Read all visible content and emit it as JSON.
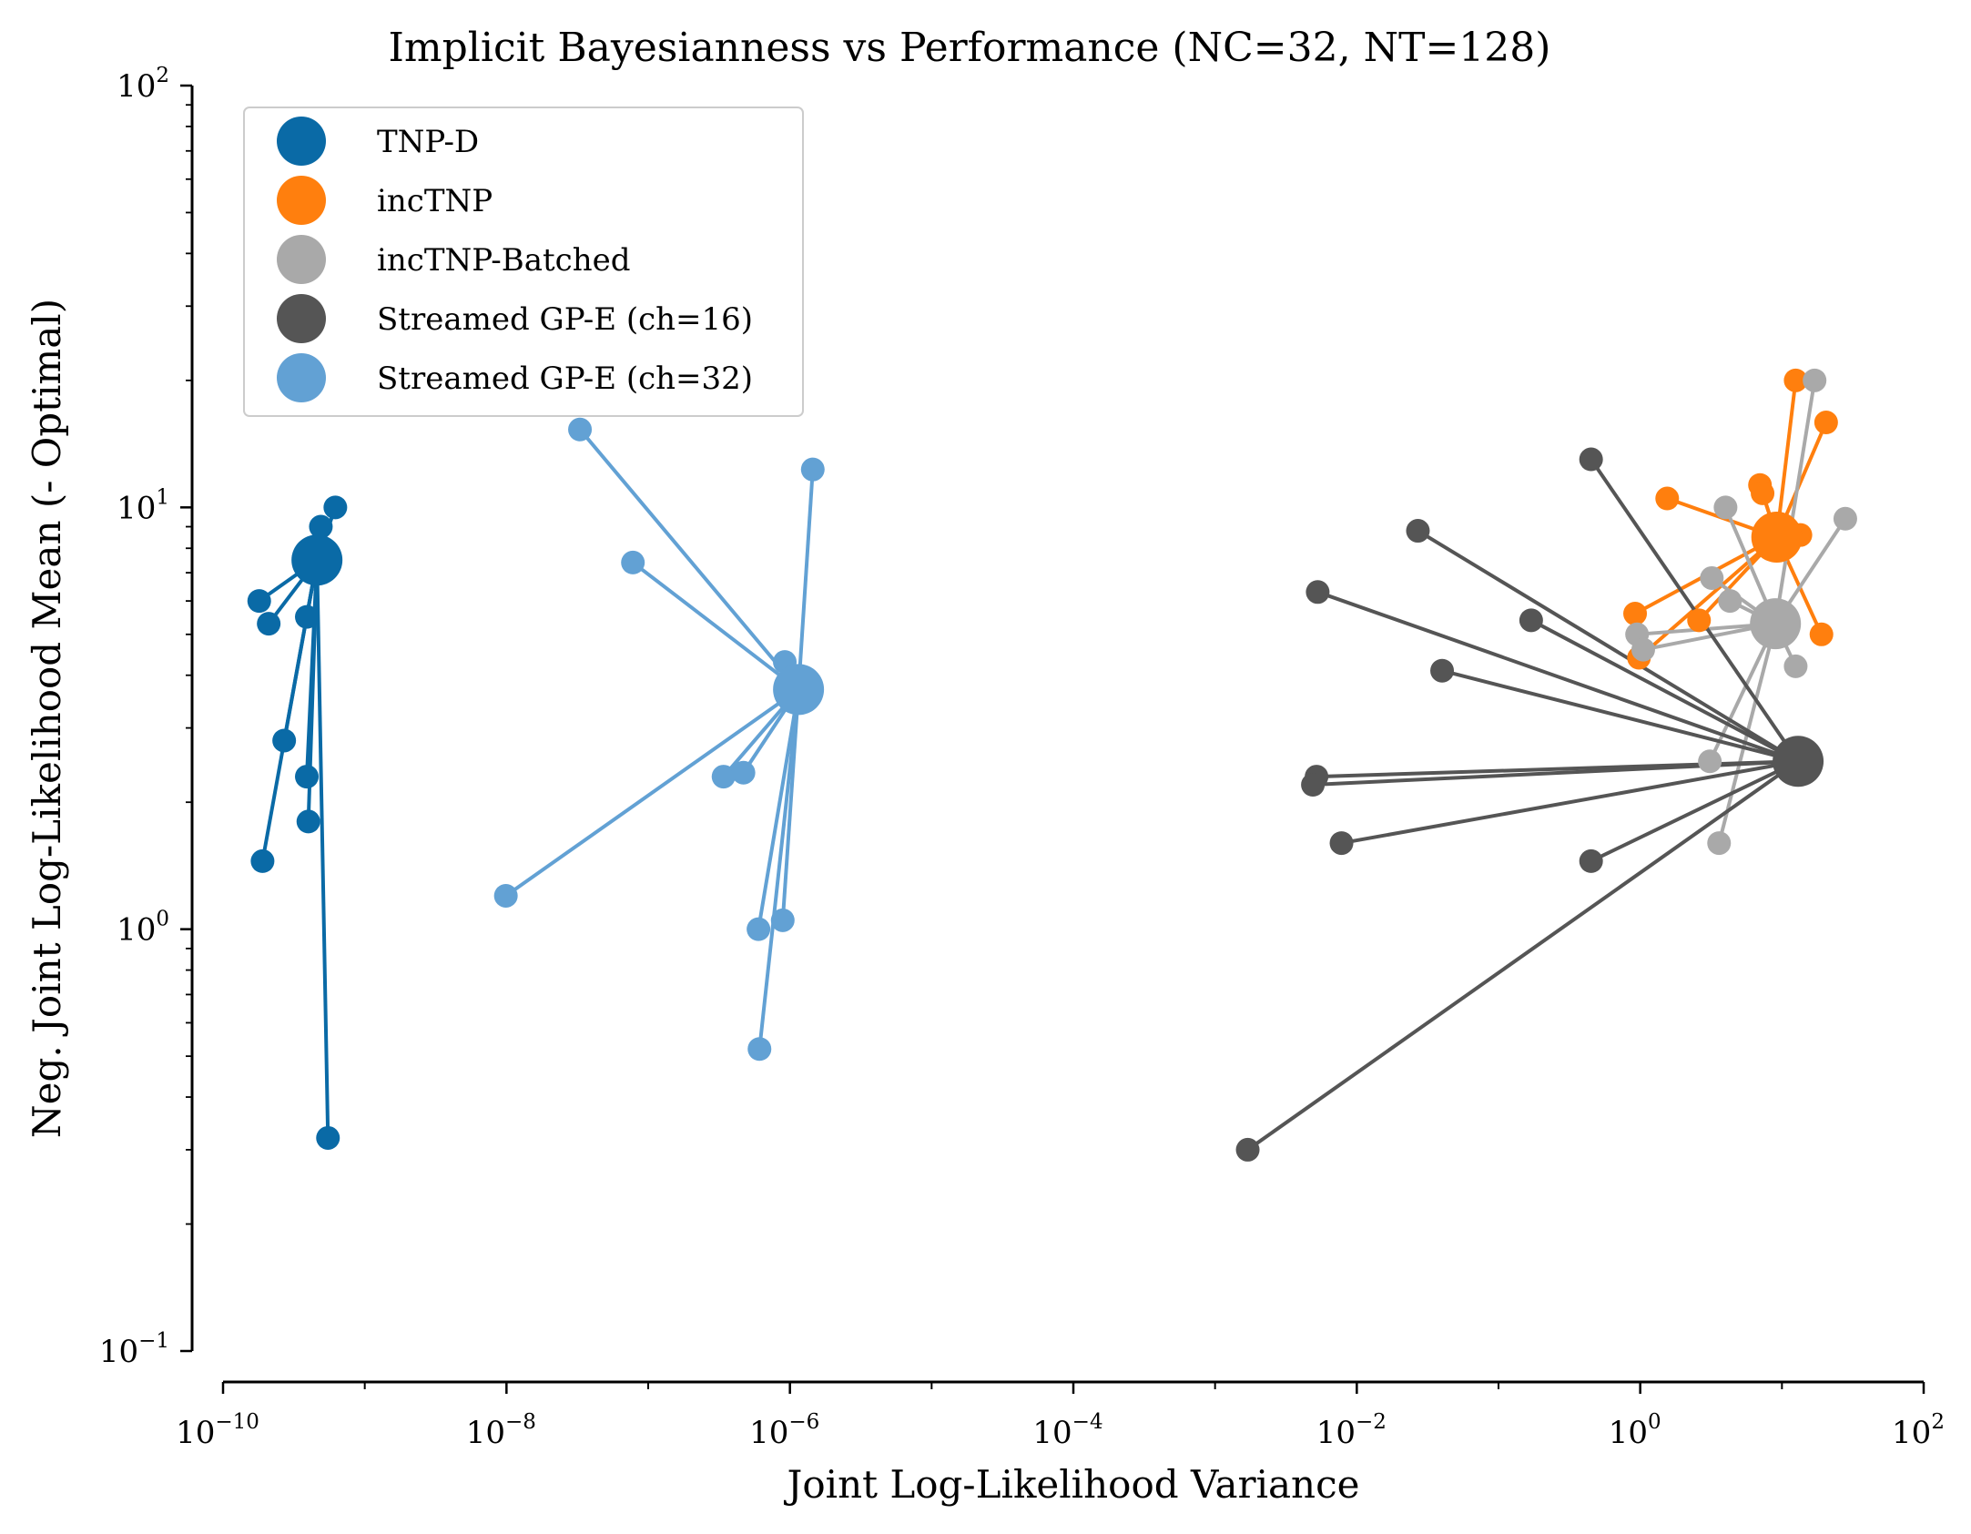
{
  "chart_data": {
    "type": "scatter",
    "title": "Implicit Bayesianness vs Performance (NC=32, NT=128)",
    "xlabel": "Joint Log-Likelihood Variance",
    "ylabel": "Neg. Joint Log-Likelihood Mean (- Optimal)",
    "xscale": "log",
    "yscale": "log",
    "xlim": [
      1e-10,
      100
    ],
    "ylim": [
      0.1,
      100
    ],
    "x_ticks": [
      {
        "base": "10",
        "exp": "−10"
      },
      {
        "base": "10",
        "exp": "−8"
      },
      {
        "base": "10",
        "exp": "−6"
      },
      {
        "base": "10",
        "exp": "−4"
      },
      {
        "base": "10",
        "exp": "−2"
      },
      {
        "base": "10",
        "exp": "0"
      },
      {
        "base": "10",
        "exp": "2"
      }
    ],
    "y_ticks": [
      {
        "base": "10",
        "exp": "−1"
      },
      {
        "base": "10",
        "exp": "0"
      },
      {
        "base": "10",
        "exp": "1"
      },
      {
        "base": "10",
        "exp": "2"
      }
    ],
    "grid": false,
    "legend_position": "top-left",
    "series": [
      {
        "name": "TNP-D",
        "color": "#0a6aa6",
        "center": [
          4.6e-10,
          7.5
        ],
        "points": [
          [
            1.8e-10,
            6.0
          ],
          [
            2.1e-10,
            5.3
          ],
          [
            3.9e-10,
            5.5
          ],
          [
            4.9e-10,
            9.0
          ],
          [
            6.2e-10,
            10.0
          ],
          [
            2.7e-10,
            2.8
          ],
          [
            3.9e-10,
            2.3
          ],
          [
            4e-10,
            1.8
          ],
          [
            1.9e-10,
            1.45
          ],
          [
            5.5e-10,
            0.32
          ]
        ]
      },
      {
        "name": "incTNP",
        "color": "#ff7f0e",
        "center": [
          9.2,
          8.5
        ],
        "points": [
          [
            1.55,
            10.5
          ],
          [
            7.0,
            11.3
          ],
          [
            7.3,
            10.8
          ],
          [
            12.5,
            20.0
          ],
          [
            20.5,
            15.9
          ],
          [
            13.5,
            8.6
          ],
          [
            19.0,
            5.0
          ],
          [
            0.92,
            5.6
          ],
          [
            0.98,
            4.4
          ],
          [
            2.6,
            5.4
          ]
        ]
      },
      {
        "name": "incTNP-Batched",
        "color": "#a9a9a9",
        "center": [
          9.0,
          5.3
        ],
        "points": [
          [
            17.0,
            20.0
          ],
          [
            28.0,
            9.4
          ],
          [
            4.0,
            10.0
          ],
          [
            3.2,
            6.8
          ],
          [
            4.3,
            6.0
          ],
          [
            12.5,
            4.2
          ],
          [
            0.95,
            5.0
          ],
          [
            1.05,
            4.6
          ],
          [
            3.1,
            2.5
          ],
          [
            3.6,
            1.6
          ]
        ]
      },
      {
        "name": "Streamed GP-E (ch=16)",
        "color": "#555555",
        "center": [
          13.0,
          2.5
        ],
        "points": [
          [
            0.45,
            13.0
          ],
          [
            0.027,
            8.8
          ],
          [
            0.0053,
            6.3
          ],
          [
            0.17,
            5.4
          ],
          [
            0.04,
            4.1
          ],
          [
            0.0052,
            2.3
          ],
          [
            0.0049,
            2.2
          ],
          [
            0.0078,
            1.6
          ],
          [
            0.45,
            1.45
          ],
          [
            0.0017,
            0.3
          ]
        ]
      },
      {
        "name": "Streamed GP-E (ch=32)",
        "color": "#62a1d4",
        "center": [
          1.15e-06,
          3.7
        ],
        "points": [
          [
            3.3e-08,
            15.3
          ],
          [
            7.8e-08,
            7.4
          ],
          [
            1.45e-06,
            12.3
          ],
          [
            9.2e-07,
            4.3
          ],
          [
            3.4e-07,
            2.3
          ],
          [
            4.7e-07,
            2.35
          ],
          [
            9.9e-09,
            1.2
          ],
          [
            6e-07,
            1.0
          ],
          [
            8.9e-07,
            1.05
          ],
          [
            6.1e-07,
            0.52
          ]
        ]
      }
    ]
  }
}
